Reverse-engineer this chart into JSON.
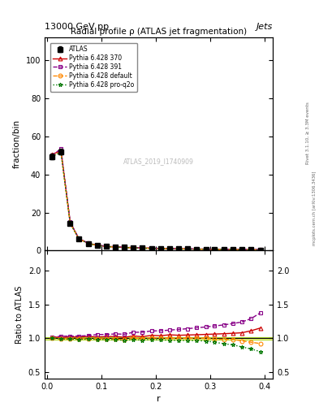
{
  "title": "Radial profile ρ (ATLAS jet fragmentation)",
  "header_left": "13000 GeV pp",
  "header_right": "Jets",
  "watermark": "ATLAS_2019_I1740909",
  "rivet_text": "Rivet 3.1.10, ≥ 3.3M events",
  "mcplots_text": "mcplots.cern.ch [arXiv:1306.3436]",
  "xlabel": "r",
  "ylabel_main": "fraction/bin",
  "ylabel_ratio": "Ratio to ATLAS",
  "ylim_main": [
    0,
    112
  ],
  "ylim_ratio": [
    0.4,
    2.3
  ],
  "yticks_main": [
    0,
    20,
    40,
    60,
    80,
    100
  ],
  "yticks_ratio": [
    0.5,
    1.0,
    1.5,
    2.0
  ],
  "xlim": [
    -0.005,
    0.415
  ],
  "xticks": [
    0,
    0.1,
    0.2,
    0.3,
    0.4
  ],
  "r_values": [
    0.008,
    0.025,
    0.042,
    0.058,
    0.075,
    0.092,
    0.108,
    0.125,
    0.142,
    0.158,
    0.175,
    0.192,
    0.208,
    0.225,
    0.242,
    0.258,
    0.275,
    0.292,
    0.308,
    0.325,
    0.342,
    0.358,
    0.375,
    0.392
  ],
  "atlas_y": [
    49.5,
    52.0,
    14.5,
    6.2,
    3.8,
    2.8,
    2.2,
    1.9,
    1.7,
    1.5,
    1.35,
    1.2,
    1.1,
    1.0,
    0.92,
    0.85,
    0.78,
    0.72,
    0.66,
    0.61,
    0.55,
    0.5,
    0.45,
    0.4
  ],
  "atlas_err": [
    1.5,
    1.5,
    0.5,
    0.2,
    0.1,
    0.08,
    0.07,
    0.06,
    0.05,
    0.04,
    0.04,
    0.03,
    0.03,
    0.03,
    0.03,
    0.02,
    0.02,
    0.02,
    0.02,
    0.02,
    0.02,
    0.01,
    0.01,
    0.01
  ],
  "py370_y": [
    50.5,
    52.5,
    14.8,
    6.3,
    3.9,
    2.85,
    2.25,
    1.95,
    1.72,
    1.55,
    1.38,
    1.25,
    1.14,
    1.05,
    0.96,
    0.89,
    0.82,
    0.76,
    0.7,
    0.65,
    0.59,
    0.54,
    0.5,
    0.46
  ],
  "py391_y": [
    50.0,
    53.5,
    15.0,
    6.4,
    3.95,
    2.95,
    2.32,
    2.02,
    1.8,
    1.63,
    1.47,
    1.33,
    1.22,
    1.12,
    1.04,
    0.97,
    0.9,
    0.84,
    0.78,
    0.73,
    0.67,
    0.62,
    0.58,
    0.55
  ],
  "pydef_y": [
    49.8,
    51.8,
    14.4,
    6.15,
    3.78,
    2.78,
    2.18,
    1.88,
    1.66,
    1.5,
    1.34,
    1.21,
    1.1,
    1.0,
    0.92,
    0.85,
    0.78,
    0.72,
    0.65,
    0.6,
    0.54,
    0.48,
    0.43,
    0.38
  ],
  "pyq2o_y": [
    49.6,
    51.5,
    14.3,
    6.1,
    3.75,
    2.75,
    2.15,
    1.86,
    1.64,
    1.47,
    1.31,
    1.18,
    1.07,
    0.97,
    0.89,
    0.82,
    0.75,
    0.69,
    0.62,
    0.56,
    0.5,
    0.44,
    0.39,
    0.33
  ],
  "py370_ratio": [
    1.02,
    1.01,
    1.02,
    1.016,
    1.026,
    1.018,
    1.023,
    1.026,
    1.012,
    1.033,
    1.022,
    1.042,
    1.036,
    1.05,
    1.043,
    1.047,
    1.051,
    1.056,
    1.061,
    1.066,
    1.073,
    1.08,
    1.11,
    1.15
  ],
  "py391_ratio": [
    1.01,
    1.03,
    1.03,
    1.032,
    1.039,
    1.054,
    1.055,
    1.063,
    1.059,
    1.087,
    1.089,
    1.108,
    1.109,
    1.12,
    1.13,
    1.141,
    1.154,
    1.167,
    1.182,
    1.197,
    1.218,
    1.24,
    1.29,
    1.375
  ],
  "pydef_ratio": [
    1.006,
    0.996,
    0.993,
    0.992,
    0.995,
    0.993,
    0.991,
    0.989,
    0.976,
    1.0,
    0.993,
    1.008,
    1.0,
    1.0,
    1.0,
    1.0,
    1.0,
    1.0,
    0.985,
    0.984,
    0.982,
    0.96,
    0.94,
    0.92
  ],
  "pyq2o_ratio": [
    1.002,
    0.99,
    0.986,
    0.984,
    0.987,
    0.982,
    0.977,
    0.979,
    0.965,
    0.98,
    0.97,
    0.983,
    0.973,
    0.97,
    0.967,
    0.965,
    0.962,
    0.958,
    0.939,
    0.918,
    0.9,
    0.87,
    0.84,
    0.8
  ],
  "atlas_band_color": "#ffff99",
  "atlas_band_edge": "#cccc00",
  "py370_color": "#cc0000",
  "py391_color": "#880088",
  "pydef_color": "#ff8800",
  "pyq2o_color": "#007700",
  "atlas_color": "#000000",
  "background_color": "#ffffff"
}
